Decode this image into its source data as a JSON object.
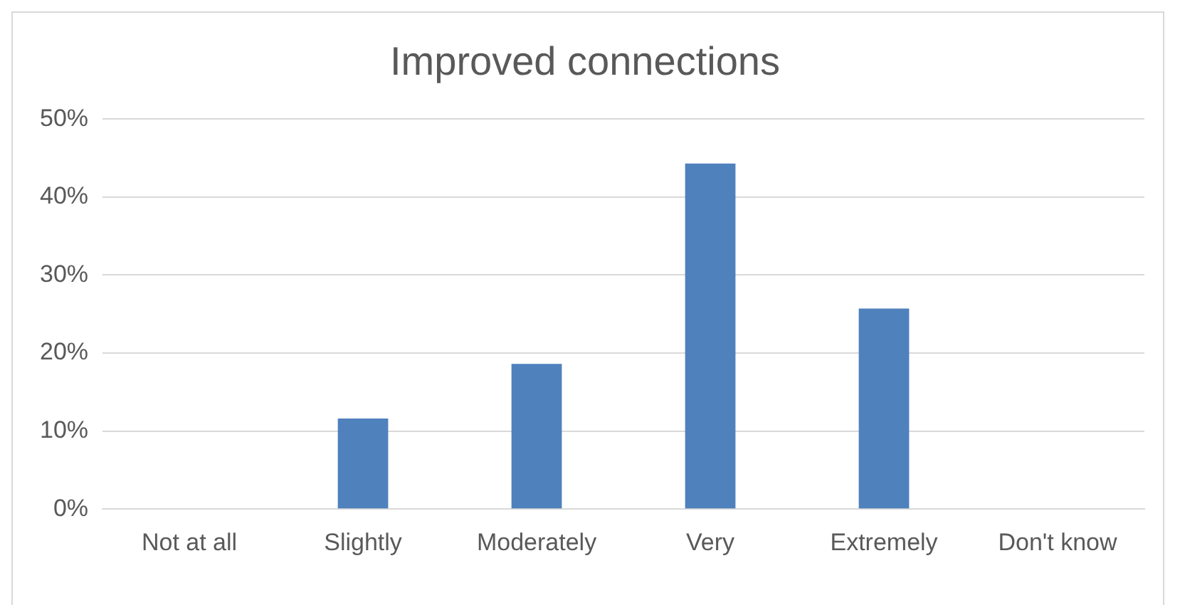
{
  "chart_data": {
    "type": "bar",
    "title": "Improved connections",
    "categories": [
      "Not at all",
      "Slightly",
      "Moderately",
      "Very",
      "Extremely",
      "Don't know"
    ],
    "values": [
      0,
      0.116,
      0.186,
      0.443,
      0.257,
      0
    ],
    "color": "#4f81bd",
    "ylim": [
      0,
      0.5
    ],
    "yticks": [
      {
        "value": 0,
        "label": "0%"
      },
      {
        "value": 0.1,
        "label": "10%"
      },
      {
        "value": 0.2,
        "label": "20%"
      },
      {
        "value": 0.3,
        "label": "30%"
      },
      {
        "value": 0.4,
        "label": "40%"
      },
      {
        "value": 0.5,
        "label": "50%"
      }
    ],
    "grid": "y",
    "legend": false
  }
}
